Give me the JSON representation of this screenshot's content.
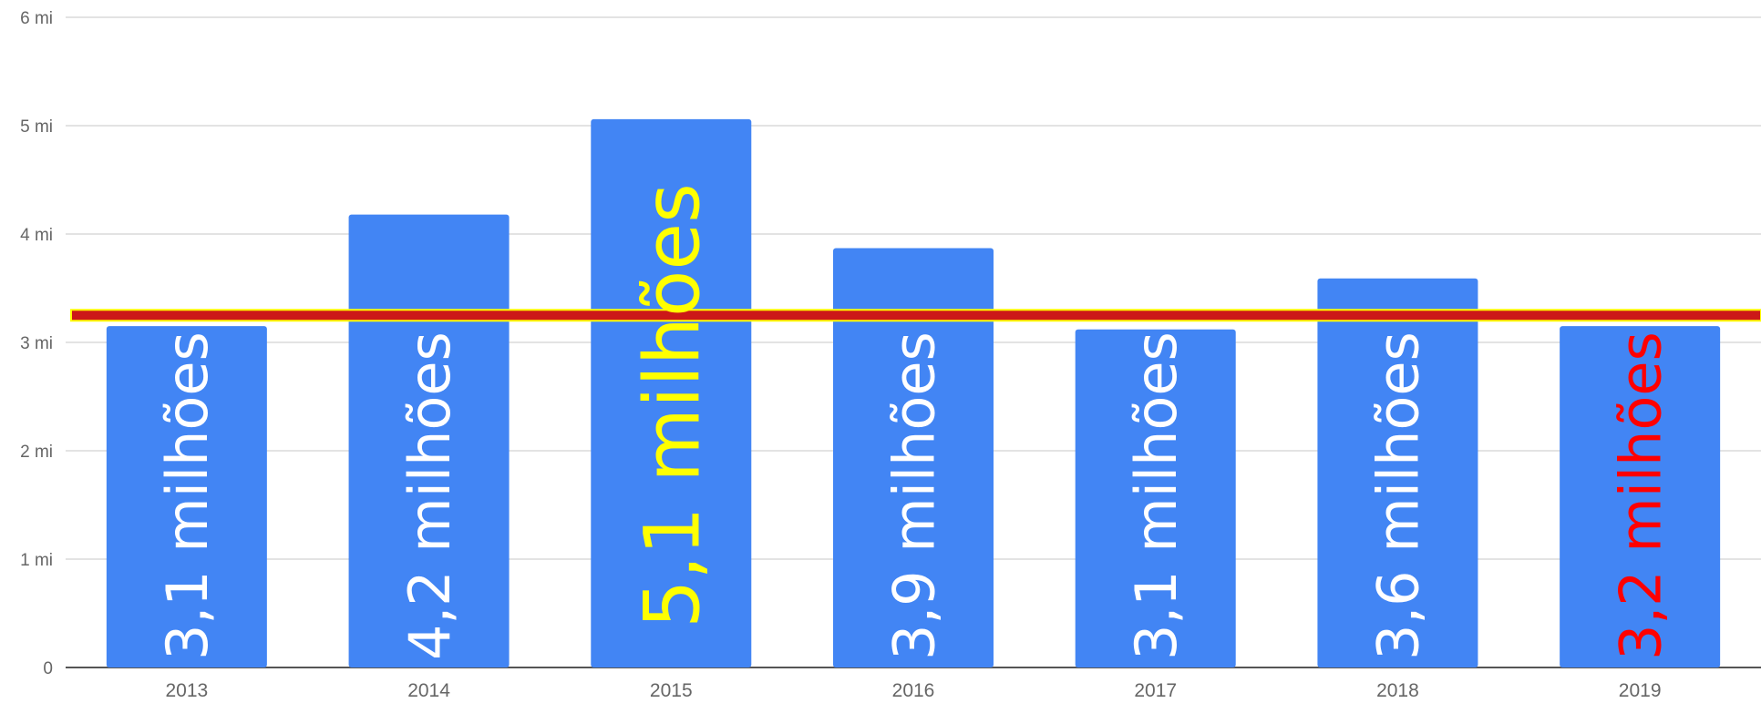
{
  "chart_data": {
    "type": "bar",
    "categories": [
      "2013",
      "2014",
      "2015",
      "2016",
      "2017",
      "2018",
      "2019"
    ],
    "values": [
      3.15,
      4.18,
      5.06,
      3.87,
      3.12,
      3.59,
      3.15
    ],
    "data_labels": [
      "3,1 milhões",
      "4,2 milhões",
      "5,1 milhões",
      "3,9 milhões",
      "3,1 milhões",
      "3,6 milhões",
      "3,2 milhões"
    ],
    "label_colors": [
      "#ffffff",
      "#ffffff",
      "#ffff00",
      "#ffffff",
      "#ffffff",
      "#ffffff",
      "#ff0000"
    ],
    "y_ticks": [
      {
        "value": 0,
        "label": "0"
      },
      {
        "value": 1,
        "label": "1 mi"
      },
      {
        "value": 2,
        "label": "2 mi"
      },
      {
        "value": 3,
        "label": "3 mi"
      },
      {
        "value": 4,
        "label": "4 mi"
      },
      {
        "value": 5,
        "label": "5 mi"
      },
      {
        "value": 6,
        "label": "6 mi"
      }
    ],
    "ylim": [
      0,
      6
    ],
    "reference_line": 3.25,
    "bar_color": "#4285f4",
    "reference_line_color": "#cc1818",
    "reference_line_border": "#ffff00",
    "grid": true,
    "title": "",
    "xlabel": "",
    "ylabel": ""
  }
}
